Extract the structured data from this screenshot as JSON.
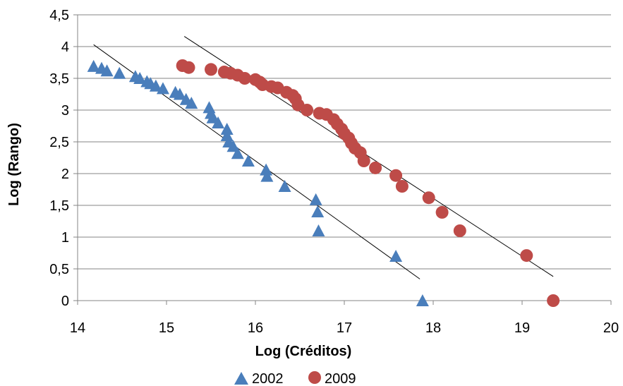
{
  "chart_data": {
    "type": "scatter",
    "title": "",
    "xlabel": "Log (Créditos)",
    "ylabel": "Log (Rango)",
    "xlim": [
      14,
      20
    ],
    "ylim": [
      0,
      4.5
    ],
    "x_ticks": [
      "14",
      "15",
      "16",
      "17",
      "18",
      "19",
      "20"
    ],
    "y_ticks": [
      "0",
      "0,5",
      "1",
      "1,5",
      "2",
      "2,5",
      "3",
      "3,5",
      "4",
      "4,5"
    ],
    "grid": "horizontal",
    "legend_position": "bottom",
    "series": [
      {
        "name": "2002",
        "marker": "triangle",
        "color": "#4a7ebb",
        "points": [
          [
            14.18,
            3.69
          ],
          [
            14.27,
            3.66
          ],
          [
            14.33,
            3.62
          ],
          [
            14.47,
            3.58
          ],
          [
            14.65,
            3.53
          ],
          [
            14.7,
            3.5
          ],
          [
            14.78,
            3.45
          ],
          [
            14.82,
            3.42
          ],
          [
            14.88,
            3.38
          ],
          [
            14.96,
            3.34
          ],
          [
            15.1,
            3.28
          ],
          [
            15.15,
            3.25
          ],
          [
            15.22,
            3.17
          ],
          [
            15.28,
            3.11
          ],
          [
            15.48,
            3.04
          ],
          [
            15.5,
            2.95
          ],
          [
            15.52,
            2.88
          ],
          [
            15.58,
            2.8
          ],
          [
            15.68,
            2.7
          ],
          [
            15.68,
            2.6
          ],
          [
            15.7,
            2.5
          ],
          [
            15.75,
            2.43
          ],
          [
            15.8,
            2.32
          ],
          [
            15.92,
            2.2
          ],
          [
            16.12,
            2.06
          ],
          [
            16.13,
            1.96
          ],
          [
            16.33,
            1.8
          ],
          [
            16.68,
            1.59
          ],
          [
            16.7,
            1.4
          ],
          [
            16.71,
            1.1
          ],
          [
            17.58,
            0.7
          ],
          [
            17.88,
            0.0
          ]
        ],
        "trendline": [
          [
            14.18,
            4.03
          ],
          [
            17.85,
            0.34
          ]
        ]
      },
      {
        "name": "2009",
        "marker": "circle",
        "color": "#be4b48",
        "points": [
          [
            15.18,
            3.7
          ],
          [
            15.25,
            3.67
          ],
          [
            15.5,
            3.64
          ],
          [
            15.65,
            3.6
          ],
          [
            15.72,
            3.58
          ],
          [
            15.8,
            3.55
          ],
          [
            15.88,
            3.5
          ],
          [
            16.0,
            3.48
          ],
          [
            16.05,
            3.44
          ],
          [
            16.08,
            3.4
          ],
          [
            16.18,
            3.37
          ],
          [
            16.25,
            3.35
          ],
          [
            16.35,
            3.28
          ],
          [
            16.42,
            3.23
          ],
          [
            16.45,
            3.18
          ],
          [
            16.48,
            3.08
          ],
          [
            16.58,
            3.0
          ],
          [
            16.72,
            2.95
          ],
          [
            16.8,
            2.93
          ],
          [
            16.88,
            2.85
          ],
          [
            16.92,
            2.78
          ],
          [
            16.97,
            2.7
          ],
          [
            17.0,
            2.63
          ],
          [
            17.05,
            2.56
          ],
          [
            17.08,
            2.48
          ],
          [
            17.12,
            2.4
          ],
          [
            17.18,
            2.33
          ],
          [
            17.22,
            2.2
          ],
          [
            17.35,
            2.09
          ],
          [
            17.58,
            1.97
          ],
          [
            17.65,
            1.8
          ],
          [
            17.95,
            1.62
          ],
          [
            18.1,
            1.39
          ],
          [
            18.3,
            1.1
          ],
          [
            19.05,
            0.71
          ],
          [
            19.35,
            0.0
          ]
        ],
        "trendline": [
          [
            15.2,
            4.16
          ],
          [
            19.35,
            0.38
          ]
        ]
      }
    ]
  }
}
